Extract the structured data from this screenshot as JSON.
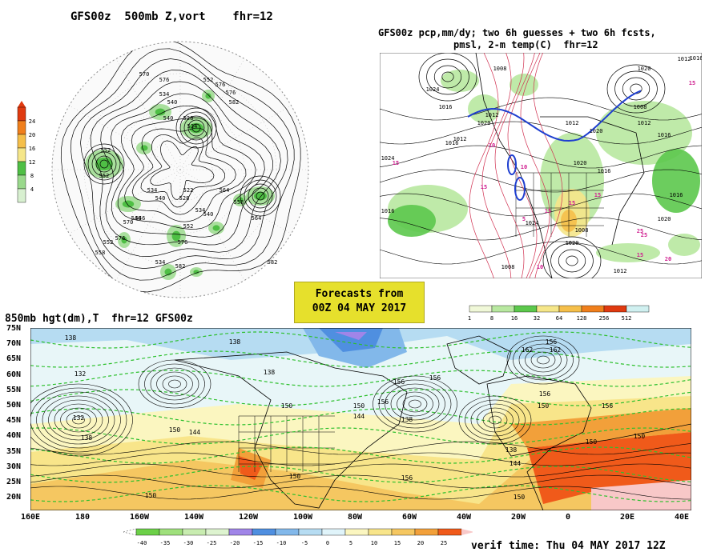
{
  "panels": {
    "z500": {
      "title": "GFS00z  500mb Z,vort    fhr=12",
      "colorbar": {
        "ticks": [
          "4",
          "8",
          "12",
          "16",
          "20",
          "24"
        ],
        "colors": [
          "#d8f0d0",
          "#9ad98c",
          "#4fbf45",
          "#f5e689",
          "#f5bf4a",
          "#f07f1c",
          "#e03a10"
        ]
      },
      "contour_labels": [
        "552",
        "570",
        "576",
        "552",
        "576",
        "576",
        "582",
        "534",
        "540",
        "540",
        "528",
        "534",
        "552",
        "564",
        "558",
        "534",
        "540",
        "546",
        "522",
        "528",
        "534",
        "540",
        "552",
        "576",
        "546",
        "534",
        "582",
        "564",
        "582",
        "570",
        "576",
        "552",
        "558"
      ]
    },
    "precip": {
      "title_line1": "GFS00z pcp,mm/dy; two 6h guesses + two 6h fcsts,",
      "title_line2": "pmsl, 2-m temp(C)  fhr=12",
      "pressure_labels": [
        "1024",
        "1016",
        "1012",
        "1008",
        "1024",
        "1016",
        "1020",
        "1012",
        "1012",
        "1020",
        "1020",
        "1016",
        "1012",
        "1016",
        "1008",
        "1020",
        "1012",
        "1016",
        "1008",
        "1024",
        "1020",
        "1016",
        "1016",
        "1020",
        "1008",
        "1012"
      ],
      "temp_labels": [
        "15",
        "15",
        "10",
        "15",
        "10",
        "5",
        "15",
        "15",
        "25",
        "15",
        "10",
        "15",
        "25",
        "20"
      ],
      "colorbar": {
        "ticks": [
          "1",
          "8",
          "16",
          "32",
          "64",
          "128",
          "256",
          "512"
        ],
        "colors": [
          "#f0f8d8",
          "#b8e8a0",
          "#5cc84c",
          "#f5e689",
          "#f5bf4a",
          "#f07f1c",
          "#e03a10",
          "#d0f0f0"
        ]
      }
    },
    "h850": {
      "title": "850mb hgt(dm),T  fhr=12 GFS00z",
      "lat_labels": [
        "75N",
        "70N",
        "65N",
        "60N",
        "55N",
        "50N",
        "45N",
        "40N",
        "35N",
        "30N",
        "25N",
        "20N"
      ],
      "lon_labels": [
        "160E",
        "180",
        "160W",
        "140W",
        "120W",
        "100W",
        "80W",
        "60W",
        "40W",
        "20W",
        "0",
        "20E",
        "40E"
      ],
      "height_labels": [
        "138",
        "138",
        "132",
        "138",
        "150",
        "156",
        "144",
        "150",
        "156",
        "144",
        "150",
        "138",
        "156",
        "138",
        "156",
        "150",
        "162",
        "156",
        "150",
        "144",
        "138",
        "132",
        "150",
        "156",
        "150",
        "156",
        "162",
        "150",
        "150"
      ],
      "colorbar": {
        "ticks": [
          "-40",
          "-35",
          "-30",
          "-25",
          "-20",
          "-15",
          "-10",
          "-5",
          "0",
          "5",
          "10",
          "15",
          "20",
          "25"
        ],
        "colors": [
          "#6cd048",
          "#9fe07c",
          "#c8ecb0",
          "#ddf3cf",
          "#a085e8",
          "#4f8fe0",
          "#82b8ea",
          "#b6dcf2",
          "#e0f4fa",
          "#fbf6c0",
          "#f8e58a",
          "#f5c761",
          "#f2a03a",
          "#f05a1a"
        ]
      }
    }
  },
  "forecast_box": {
    "line1": "Forecasts from",
    "line2": "00Z 04 MAY 2017"
  },
  "verif_time": "verif time: Thu 04 MAY 2017 12Z"
}
